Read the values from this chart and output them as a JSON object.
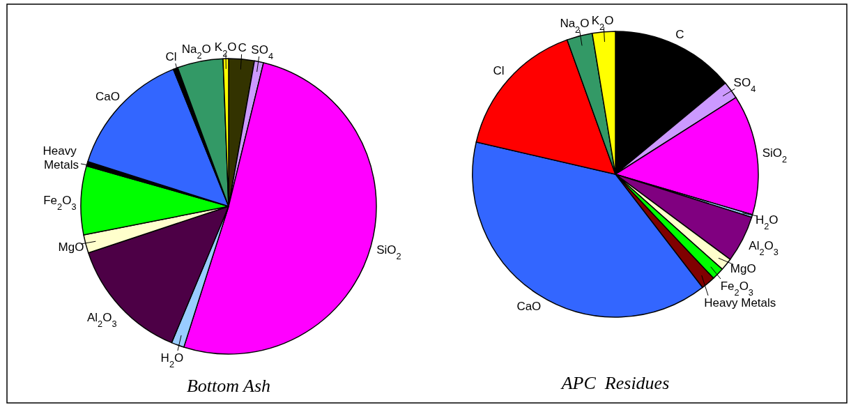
{
  "chart_data": [
    {
      "type": "pie",
      "title": "Bottom Ash",
      "categories": [
        "C",
        "SO$_{4}$",
        "SiO$_{2}$",
        "H$_{2}$O",
        "Al$_{2}$O$_{3}$",
        "MgO",
        "Fe$_{2}$O$_{3}$",
        "Heavy Metals",
        "CaO",
        "Cl",
        "Na$_{2}$O",
        "K$_{2}$O"
      ],
      "values": [
        2.8,
        1,
        51.1,
        1.4,
        13.6,
        2,
        7.5,
        0.5,
        14,
        0.5,
        5,
        0.6
      ],
      "colors": [
        "#333300",
        "#cc99ff",
        "#ff00ff",
        "#99ccff",
        "#4d0046",
        "#ffffcc",
        "#00ff00",
        "#000000",
        "#3366ff",
        "#000000",
        "#339966",
        "#ffff00"
      ]
    },
    {
      "type": "pie",
      "title": "APC  Residues",
      "categories": [
        "C",
        "SO$_{4}$",
        "SiO$_{2}$",
        "H$_{2}$O",
        "Al$_{2}$O$_{3}$",
        "MgO",
        "Fe$_{2}$O$_{3}$",
        "Heavy Metals",
        "CaO",
        "Cl",
        "Na$_{2}$O",
        "K$_{2}$O"
      ],
      "values": [
        14,
        2,
        13.6,
        0.3,
        5.3,
        1.4,
        1.4,
        1.6,
        39.1,
        15.9,
        2.9,
        2.6
      ],
      "colors": [
        "#000000",
        "#cc99ff",
        "#ff00ff",
        "#99ccff",
        "#800080",
        "#ffffcc",
        "#00ff00",
        "#800000",
        "#3366ff",
        "#ff0000",
        "#339966",
        "#ffff00"
      ]
    }
  ]
}
